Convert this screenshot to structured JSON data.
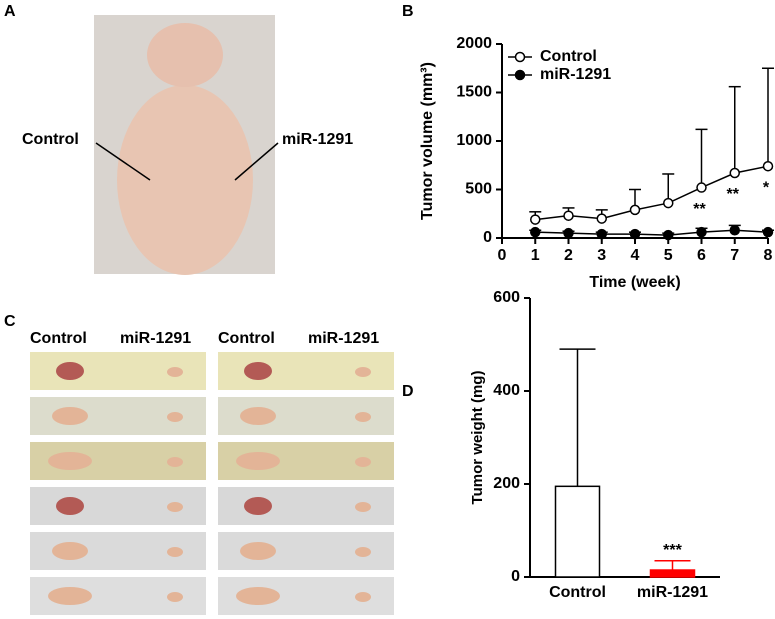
{
  "panels": {
    "a": "A",
    "b": "B",
    "c": "C",
    "d": "D"
  },
  "photo_a": {
    "labels": [
      "Control",
      "miR-1291"
    ]
  },
  "photo_c": {
    "headers": [
      "Control",
      "miR-1291",
      "Control",
      "miR-1291"
    ]
  },
  "chart_data": [
    {
      "type": "line",
      "xlabel": "Time (week)",
      "ylabel": "Tumor volume (mm³)",
      "x": [
        1,
        2,
        3,
        4,
        5,
        6,
        7,
        8
      ],
      "xlim": [
        0,
        8
      ],
      "xticks": [
        0,
        1,
        2,
        3,
        4,
        5,
        6,
        7,
        8
      ],
      "ylim": [
        0,
        2000
      ],
      "yticks": [
        0,
        500,
        1000,
        1500,
        2000
      ],
      "legend": "upper left",
      "series": [
        {
          "name": "Control",
          "color": "#000000",
          "marker": "open",
          "values": [
            190,
            230,
            200,
            290,
            360,
            520,
            670,
            740
          ],
          "errors": [
            80,
            80,
            90,
            210,
            300,
            600,
            890,
            1010
          ]
        },
        {
          "name": "miR-1291",
          "color": "#000000",
          "marker": "filled",
          "values": [
            60,
            50,
            40,
            40,
            30,
            60,
            80,
            60
          ],
          "errors": [
            20,
            20,
            20,
            20,
            20,
            40,
            50,
            20
          ]
        }
      ],
      "annotations": [
        {
          "text": "**",
          "x": 6
        },
        {
          "text": "**",
          "x": 7
        },
        {
          "text": "*",
          "x": 8
        }
      ]
    },
    {
      "type": "bar",
      "ylabel": "Tumor weight (mg)",
      "categories": [
        "Control",
        "miR-1291"
      ],
      "values": [
        195,
        15
      ],
      "errors": [
        295,
        20
      ],
      "colors": [
        "#ffffff",
        "#ff0000"
      ],
      "ylim": [
        0,
        600
      ],
      "yticks": [
        0,
        200,
        400,
        600
      ],
      "annotations": [
        {
          "text": "***",
          "category": 1
        }
      ]
    }
  ]
}
